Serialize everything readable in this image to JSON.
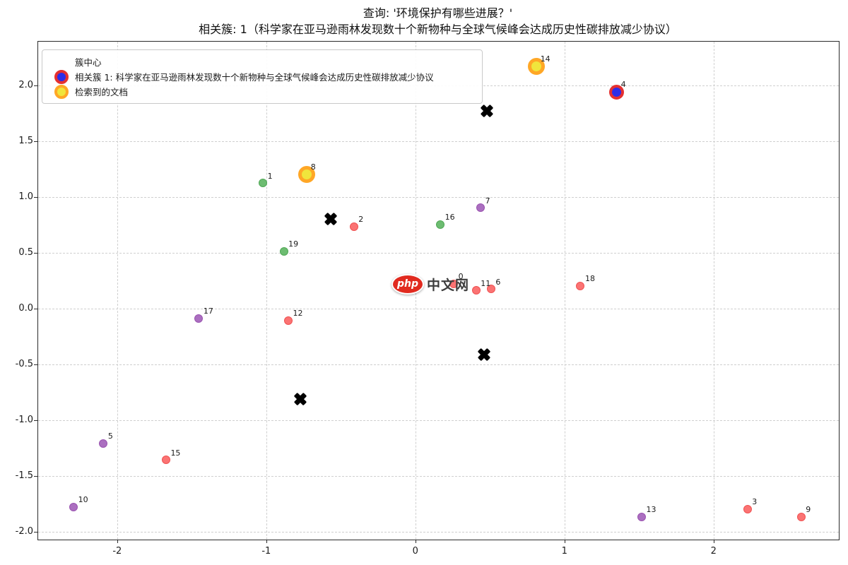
{
  "chart_data": {
    "type": "scatter",
    "title": "查询: '环境保护有哪些进展？'",
    "subtitle": "相关簇: 1（科学家在亚马逊雨林发现数十个新物种与全球气候峰会达成历史性碳排放减少协议）",
    "grid": true,
    "grid_style": "dashed",
    "legend_position": "upper-left",
    "xlim": [
      -2.53,
      2.84
    ],
    "ylim": [
      -2.07,
      2.39
    ],
    "x_ticks": [
      {
        "v": -2,
        "label": "-2"
      },
      {
        "v": -1,
        "label": "-1"
      },
      {
        "v": 0,
        "label": "0"
      },
      {
        "v": 1,
        "label": "1"
      },
      {
        "v": 2,
        "label": "2"
      }
    ],
    "y_ticks": [
      {
        "v": 2.0,
        "label": "2.0"
      },
      {
        "v": 1.5,
        "label": "1.5"
      },
      {
        "v": 1.0,
        "label": "1.0"
      },
      {
        "v": 0.5,
        "label": "0.5"
      },
      {
        "v": 0.0,
        "label": "0.0"
      },
      {
        "v": -0.5,
        "label": "-0.5"
      },
      {
        "v": -1.0,
        "label": "-1.0"
      },
      {
        "v": -1.5,
        "label": "-1.5"
      },
      {
        "v": -2.0,
        "label": "-2.0"
      }
    ],
    "groups": {
      "red": {
        "fill": "#fb7373",
        "edge": "#f05252",
        "core": 10,
        "edge_width": 1.5
      },
      "green": {
        "fill": "#6dbc71",
        "edge": "#4fa855",
        "core": 10,
        "edge_width": 1.5
      },
      "purple": {
        "fill": "#ab6fc0",
        "edge": "#9a53b0",
        "core": 10,
        "edge_width": 1.5
      },
      "related": {
        "fill": "#2d2de8",
        "edge": "#e53030",
        "core": 13,
        "edge_width": 4
      },
      "retrieved": {
        "fill": "#f0e53c",
        "edge": "#ffa726",
        "core": 14,
        "edge_width": 5
      }
    },
    "points": [
      {
        "id": 0,
        "x": 0.26,
        "y": 0.22,
        "group": "red"
      },
      {
        "id": 1,
        "x": -1.02,
        "y": 1.12,
        "group": "green"
      },
      {
        "id": 2,
        "x": -0.41,
        "y": 0.73,
        "group": "red"
      },
      {
        "id": 3,
        "x": 2.23,
        "y": -1.8,
        "group": "red"
      },
      {
        "id": 4,
        "x": 1.35,
        "y": 1.94,
        "group": "related"
      },
      {
        "id": 5,
        "x": -2.09,
        "y": -1.21,
        "group": "purple"
      },
      {
        "id": 6,
        "x": 0.51,
        "y": 0.17,
        "group": "red"
      },
      {
        "id": 7,
        "x": 0.44,
        "y": 0.9,
        "group": "purple"
      },
      {
        "id": 8,
        "x": -0.73,
        "y": 1.2,
        "group": "retrieved"
      },
      {
        "id": 9,
        "x": 2.59,
        "y": -1.87,
        "group": "red"
      },
      {
        "id": 10,
        "x": -2.29,
        "y": -1.78,
        "group": "purple"
      },
      {
        "id": 11,
        "x": 0.41,
        "y": 0.16,
        "group": "red"
      },
      {
        "id": 12,
        "x": -0.85,
        "y": -0.11,
        "group": "red"
      },
      {
        "id": 13,
        "x": 1.52,
        "y": -1.87,
        "group": "purple"
      },
      {
        "id": 14,
        "x": 0.81,
        "y": 2.17,
        "group": "retrieved"
      },
      {
        "id": 15,
        "x": -1.67,
        "y": -1.36,
        "group": "red"
      },
      {
        "id": 16,
        "x": 0.17,
        "y": 0.75,
        "group": "green"
      },
      {
        "id": 17,
        "x": -1.45,
        "y": -0.09,
        "group": "purple"
      },
      {
        "id": 18,
        "x": 1.11,
        "y": 0.2,
        "group": "red"
      },
      {
        "id": 19,
        "x": -0.88,
        "y": 0.51,
        "group": "green"
      }
    ],
    "cluster_centers": [
      {
        "x": -0.57,
        "y": 0.8
      },
      {
        "x": 0.48,
        "y": 1.77
      },
      {
        "x": 0.46,
        "y": -0.41
      },
      {
        "x": -0.77,
        "y": -0.81
      }
    ]
  },
  "legend": {
    "items": [
      {
        "label": "簇中心"
      },
      {
        "label": "相关簇 1: 科学家在亚马逊雨林发现数十个新物种与全球气候峰会达成历史性碳排放减少协议"
      },
      {
        "label": "检索到的文档"
      }
    ]
  },
  "watermark": {
    "badge": "php",
    "site": "中文网"
  }
}
